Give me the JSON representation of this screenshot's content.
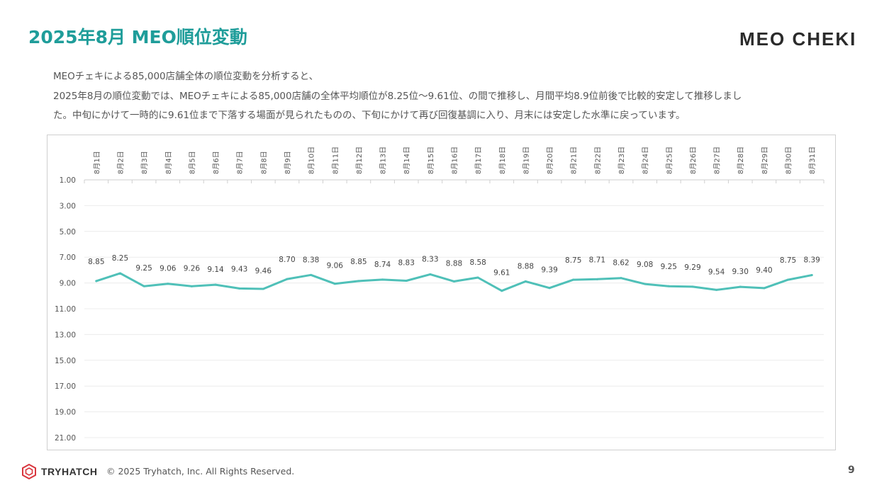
{
  "header": {
    "title": "2025年8月 MEO順位変動",
    "logo_text": "MEO CHEKI"
  },
  "description": {
    "line1": "MEOチェキによる85,000店舗全体の順位変動を分析すると、",
    "line2": "2025年8月の順位変動では、MEOチェキによる85,000店舗の全体平均順位が8.25位～9.61位、の間で推移し、月間平均8.9位前後で比較的安定して推移しまし",
    "line3": "た。中旬にかけて一時的に9.61位まで下落する場面が見られたものの、下旬にかけて再び回復基調に入り、月末には安定した水準に戻っています。"
  },
  "chart_data": {
    "type": "line",
    "categories": [
      "8月1日",
      "8月2日",
      "8月3日",
      "8月4日",
      "8月5日",
      "8月6日",
      "8月7日",
      "8月8日",
      "8月9日",
      "8月10日",
      "8月11日",
      "8月12日",
      "8月13日",
      "8月14日",
      "8月15日",
      "8月16日",
      "8月17日",
      "8月18日",
      "8月19日",
      "8月20日",
      "8月21日",
      "8月22日",
      "8月23日",
      "8月24日",
      "8月25日",
      "8月26日",
      "8月27日",
      "8月28日",
      "8月29日",
      "8月30日",
      "8月31日"
    ],
    "series": [
      {
        "values": [
          8.85,
          8.25,
          9.25,
          9.06,
          9.26,
          9.14,
          9.43,
          9.46,
          8.7,
          8.38,
          9.06,
          8.85,
          8.74,
          8.83,
          8.33,
          8.88,
          8.58,
          9.61,
          8.88,
          9.39,
          8.75,
          8.71,
          8.62,
          9.08,
          9.25,
          9.29,
          9.54,
          9.3,
          9.4,
          8.75,
          8.39
        ],
        "color": "#4fc0b8"
      }
    ],
    "y_ticks": [
      "1.00",
      "3.00",
      "5.00",
      "7.00",
      "9.00",
      "11.00",
      "13.00",
      "15.00",
      "17.00",
      "19.00",
      "21.00"
    ],
    "ylim": [
      1,
      21
    ],
    "y_reversed": true,
    "x_axis_position": "top",
    "grid": true,
    "title": "",
    "xlabel": "",
    "ylabel": ""
  },
  "footer": {
    "brand": "TRYHATCH",
    "copyright": "© 2025 Tryhatch, Inc. All Rights Reserved.",
    "page_number": "9"
  }
}
